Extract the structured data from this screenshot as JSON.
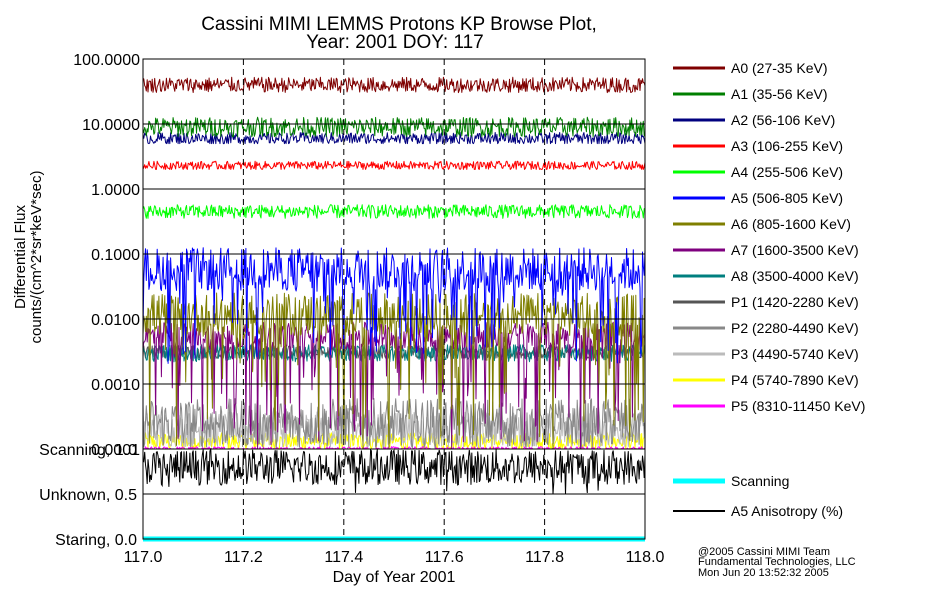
{
  "chart_data": {
    "type": "line",
    "title_line1": "Cassini MIMI LEMMS Protons KP Browse Plot,",
    "title_line2": "Year: 2001 DOY: 117",
    "xlabel": "Day of Year 2001",
    "ylabel_line1": "Differential Flux",
    "ylabel_line2": "counts/(cm^2*sr*keV*sec)",
    "xlim": [
      117.0,
      118.0
    ],
    "x_ticks": [
      117.0,
      117.2,
      117.4,
      117.6,
      117.8,
      118.0
    ],
    "x_tick_labels": [
      "117.0",
      "117.2",
      "117.4",
      "117.6",
      "117.8",
      "118.0"
    ],
    "y_scale": "log",
    "ylim": [
      0.0001,
      100.0
    ],
    "y_ticks": [
      100.0,
      10.0,
      1.0,
      0.1,
      0.01,
      0.001,
      0.0001
    ],
    "y_tick_labels": [
      "100.0000",
      "10.0000",
      "1.0000",
      "0.1000",
      "0.0100",
      "0.0010",
      "0.0001"
    ],
    "grid": true,
    "legend_position": "right",
    "series": [
      {
        "name": "A0 (27-35 KeV)",
        "color": "#7f0000",
        "typical_value": 40.0,
        "range": [
          30.0,
          55.0
        ]
      },
      {
        "name": "A1 (35-56 KeV)",
        "color": "#007f00",
        "typical_value": 9.0,
        "range": [
          6.0,
          13.0
        ]
      },
      {
        "name": "A2 (56-106 KeV)",
        "color": "#00007f",
        "typical_value": 6.0,
        "range": [
          5.0,
          8.0
        ]
      },
      {
        "name": "A3 (106-255 KeV)",
        "color": "#ff0000",
        "typical_value": 2.3,
        "range": [
          2.0,
          2.8
        ]
      },
      {
        "name": "A4 (255-506 KeV)",
        "color": "#00ff00",
        "typical_value": 0.45,
        "range": [
          0.35,
          0.6
        ]
      },
      {
        "name": "A5 (506-805 KeV)",
        "color": "#0000ff",
        "typical_value": 0.05,
        "range": [
          0.002,
          0.15
        ]
      },
      {
        "name": "A6 (805-1600 KeV)",
        "color": "#7f7f00",
        "typical_value": 0.01,
        "range": [
          0.0001,
          0.03
        ]
      },
      {
        "name": "A7 (1600-3500 KeV)",
        "color": "#7f007f",
        "typical_value": 0.005,
        "range": [
          0.0001,
          0.01
        ]
      },
      {
        "name": "A8 (3500-4000 KeV)",
        "color": "#007f7f",
        "typical_value": 0.003,
        "range": [
          0.002,
          0.004
        ]
      },
      {
        "name": "P1 (1420-2280 KeV)",
        "color": "#555555",
        "typical_value": 0.003,
        "range": [
          0.0025,
          0.0045
        ]
      },
      {
        "name": "P2 (2280-4490 KeV)",
        "color": "#888888",
        "typical_value": 0.00025,
        "range": [
          0.0001,
          0.0007
        ]
      },
      {
        "name": "P3 (4490-5740 KeV)",
        "color": "#bbbbbb",
        "typical_value": 0.0002,
        "range": [
          0.0001,
          0.0004
        ]
      },
      {
        "name": "P4 (5740-7890 KeV)",
        "color": "#ffff00",
        "typical_value": 0.00013,
        "range": [
          0.0001,
          0.0002
        ]
      },
      {
        "name": "P5 (8310-11450 KeV)",
        "color": "#ff00ff",
        "typical_value": 0.0001,
        "range": [
          0.0001,
          0.00012
        ]
      }
    ],
    "lower_panel": {
      "y_tick_labels": [
        "Scanning, 1.0",
        "Unknown, 0.5",
        "Staring, 0.0"
      ],
      "y_ticks": [
        1.0,
        0.5,
        0.0
      ],
      "ylim": [
        0.0,
        1.0
      ],
      "series": [
        {
          "name": "Scanning",
          "color": "#00ffff",
          "typical_value": 0.0
        },
        {
          "name": "A5 Anisotropy (%)",
          "color": "#000000",
          "typical_value": 0.8,
          "range": [
            0.6,
            1.0
          ]
        }
      ]
    }
  },
  "credits": {
    "line1": "@2005 Cassini MIMI Team",
    "line2": "Fundamental Technologies, LLC",
    "line3": "Mon Jun 20 13:52:32 2005"
  }
}
